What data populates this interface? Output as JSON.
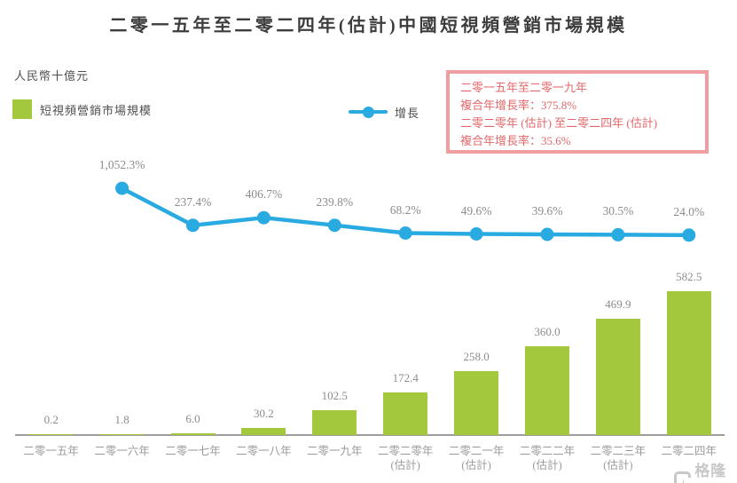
{
  "title": "二零一五年至二零二四年(估計)中國短視頻營銷市場規模",
  "unit_label": "人民幣十億元",
  "legend": {
    "bars_label": "短視頻營銷市場規模",
    "line_label": "增長"
  },
  "cagr_box": {
    "line1": "二零一五年至二零一九年",
    "line2": "複合年增長率：375.8%",
    "line3": "二零二零年 (估計) 至二零二四年 (估計)",
    "line4": "複合年增長率：35.6%"
  },
  "watermark": "格隆汇",
  "colors": {
    "bar": "#A3C83D",
    "line": "#29ABE2",
    "box_border": "#F09EA0",
    "box_text": "#E2686B",
    "value_label": "#8C8C8C",
    "axis": "#9E9E9E"
  },
  "chart_data": {
    "type": "bar",
    "title": "二零一五年至二零二四年(估計)中國短視頻營銷市場規模",
    "ylabel": "人民幣十億元",
    "grid": false,
    "legend_position": "top",
    "categories": [
      [
        "二零一五年"
      ],
      [
        "二零一六年"
      ],
      [
        "二零一七年"
      ],
      [
        "二零一八年"
      ],
      [
        "二零一九年"
      ],
      [
        "二零二零年",
        "(估計)"
      ],
      [
        "二零二一年",
        "(估計)"
      ],
      [
        "二零二二年",
        "(估計)"
      ],
      [
        "二零二三年",
        "(估計)"
      ],
      [
        "二零二四年"
      ]
    ],
    "bar_series_name": "短視頻營銷市場規模",
    "bar_values": [
      0.2,
      1.8,
      6.0,
      30.2,
      102.5,
      172.4,
      258.0,
      360.0,
      469.9,
      582.5
    ],
    "bar_labels": [
      "0.2",
      "1.8",
      "6.0",
      "30.2",
      "102.5",
      "172.4",
      "258.0",
      "360.0",
      "469.9",
      "582.5"
    ],
    "overlay_line": {
      "name": "增長",
      "unit": "%",
      "aligned_from_category_index": 1,
      "values": [
        1052.3,
        237.4,
        406.7,
        239.8,
        68.2,
        49.6,
        39.6,
        30.5,
        24.0
      ],
      "labels": [
        "1,052.3%",
        "237.4%",
        "406.7%",
        "239.8%",
        "68.2%",
        "49.6%",
        "39.6%",
        "30.5%",
        "24.0%"
      ]
    },
    "annotations": {
      "cagr_2015_2019_label": "二零一五年至二零一九年",
      "cagr_2015_2019_value": "375.8%",
      "cagr_2020e_2024e_label": "二零二零年 (估計) 至二零二四年 (估計)",
      "cagr_2020e_2024e_value": "35.6%"
    }
  }
}
